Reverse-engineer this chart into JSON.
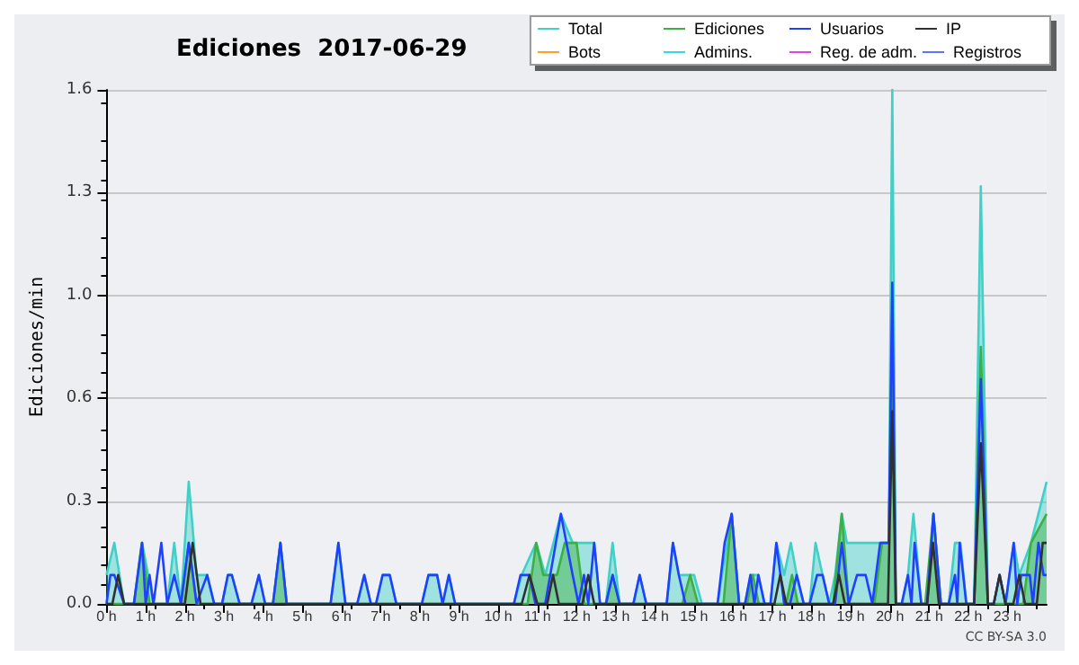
{
  "chart_data": {
    "type": "line",
    "title": "Ediciones  2017-06-29",
    "ylabel": "Ediciones/min",
    "xlim": [
      0,
      24
    ],
    "ylim": [
      0,
      1.6
    ],
    "xticks": [
      {
        "value": 0,
        "label": "0 h"
      },
      {
        "value": 1,
        "label": "1 h"
      },
      {
        "value": 2,
        "label": "2 h"
      },
      {
        "value": 3,
        "label": "3 h"
      },
      {
        "value": 4,
        "label": "4 h"
      },
      {
        "value": 5,
        "label": "5 h"
      },
      {
        "value": 6,
        "label": "6 h"
      },
      {
        "value": 7,
        "label": "7 h"
      },
      {
        "value": 8,
        "label": "8 h"
      },
      {
        "value": 9,
        "label": "9 h"
      },
      {
        "value": 10,
        "label": "10 h"
      },
      {
        "value": 11,
        "label": "11 h"
      },
      {
        "value": 12,
        "label": "12 h"
      },
      {
        "value": 13,
        "label": "13 h"
      },
      {
        "value": 14,
        "label": "14 h"
      },
      {
        "value": 15,
        "label": "15 h"
      },
      {
        "value": 16,
        "label": "16 h"
      },
      {
        "value": 17,
        "label": "17 h"
      },
      {
        "value": 18,
        "label": "18 h"
      },
      {
        "value": 19,
        "label": "19 h"
      },
      {
        "value": 20,
        "label": "20 h"
      },
      {
        "value": 21,
        "label": "21 h"
      },
      {
        "value": 22,
        "label": "22 h"
      },
      {
        "value": 23,
        "label": "23 h"
      }
    ],
    "yticks": [
      {
        "value": 0,
        "label": "0.0"
      },
      {
        "value": 0.32,
        "label": "0.3"
      },
      {
        "value": 0.64,
        "label": "0.6"
      },
      {
        "value": 0.96,
        "label": "1.0"
      },
      {
        "value": 1.28,
        "label": "1.3"
      },
      1.6
    ],
    "grid": "y",
    "legend": "top right",
    "marker": "none",
    "line_style": "solid",
    "annotations": [
      "CC BY-SA 3.0"
    ],
    "series": [
      {
        "name": "Total",
        "type": "area",
        "color": "#40d0c8",
        "x": [
          0,
          0.2,
          0.45,
          0.7,
          0.91,
          1.2,
          1.55,
          1.73,
          1.9,
          2.1,
          2.3,
          2.57,
          2.75,
          2.95,
          3.1,
          3.2,
          3.4,
          3.7,
          3.89,
          4.05,
          4.25,
          4.44,
          4.6,
          5.72,
          5.92,
          6.1,
          6.4,
          6.58,
          6.75,
          6.88,
          7.05,
          7.23,
          7.4,
          8.05,
          8.22,
          8.44,
          8.58,
          8.74,
          8.9,
          10.4,
          10.6,
          10.97,
          11.2,
          11.6,
          11.9,
          12.2,
          12.45,
          12.6,
          12.75,
          12.92,
          13.1,
          13.45,
          13.61,
          13.78,
          14.3,
          14.46,
          14.61,
          14.78,
          15,
          15.2,
          15.6,
          15.96,
          16.15,
          16.3,
          16.44,
          16.64,
          16.8,
          16.95,
          17.1,
          17.3,
          17.47,
          17.62,
          17.8,
          17.95,
          18.1,
          18.28,
          18.45,
          18.6,
          18.77,
          18.9,
          19.6,
          19.75,
          19.97,
          20.06,
          20.15,
          20.3,
          20.46,
          20.6,
          20.8,
          20.95,
          21.11,
          21.3,
          21.5,
          21.66,
          21.8,
          21.95,
          22.15,
          22.32,
          22.5,
          22.65,
          22.8,
          22.95,
          23.16,
          23.3,
          23.6,
          24
        ],
        "values": [
          0.09,
          0.19,
          0,
          0,
          0.19,
          0,
          0,
          0.19,
          0,
          0.38,
          0.09,
          0.09,
          0,
          0,
          0.09,
          0.09,
          0,
          0,
          0.09,
          0,
          0,
          0.19,
          0,
          0,
          0.19,
          0,
          0,
          0.09,
          0,
          0,
          0.09,
          0.09,
          0,
          0,
          0.09,
          0.09,
          0,
          0.09,
          0,
          0,
          0.09,
          0.19,
          0.09,
          0.28,
          0.19,
          0.19,
          0.19,
          0,
          0,
          0.19,
          0,
          0,
          0.09,
          0,
          0,
          0.19,
          0.09,
          0.09,
          0.09,
          0,
          0,
          0.28,
          0,
          0,
          0.09,
          0.09,
          0,
          0,
          0.19,
          0.09,
          0.19,
          0.09,
          0,
          0,
          0.19,
          0.09,
          0,
          0.09,
          0.28,
          0.19,
          0.19,
          0.19,
          0.19,
          1.6,
          0,
          0,
          0.09,
          0.28,
          0,
          0,
          0.28,
          0,
          0,
          0.19,
          0.19,
          0,
          0,
          1.3,
          0,
          0,
          0.09,
          0,
          0.19,
          0.09,
          0.19,
          0.38
        ]
      },
      {
        "name": "Ediciones",
        "type": "area",
        "color": "#3cb043",
        "x": [
          0,
          0.7,
          0.9,
          1.1,
          1.9,
          2.1,
          2.3,
          4.25,
          4.44,
          4.6,
          10.75,
          10.97,
          11.15,
          11.3,
          11.5,
          11.7,
          12.0,
          12.2,
          12.75,
          12.92,
          13.1,
          14.7,
          14.9,
          15.1,
          15.75,
          15.96,
          16.15,
          16.35,
          16.5,
          16.65,
          17.35,
          17.5,
          17.65,
          18.55,
          18.77,
          18.95,
          19.6,
          19.8,
          19.97,
          20.06,
          20.15,
          20.9,
          21.11,
          21.3,
          22.15,
          22.32,
          22.5,
          23.4,
          23.6,
          24
        ],
        "values": [
          0,
          0,
          0.19,
          0,
          0,
          0.19,
          0,
          0,
          0.19,
          0,
          0,
          0.19,
          0.09,
          0.09,
          0.09,
          0.19,
          0.19,
          0,
          0,
          0.09,
          0,
          0,
          0.09,
          0,
          0,
          0.28,
          0,
          0,
          0.09,
          0,
          0,
          0.09,
          0,
          0,
          0.28,
          0,
          0,
          0.19,
          0.19,
          0.85,
          0,
          0,
          0.28,
          0,
          0,
          0.8,
          0,
          0,
          0.19,
          0.28
        ]
      },
      {
        "name": "Usuarios",
        "color": "#2040ff",
        "x": [
          0,
          0.1,
          0.2,
          0.45,
          0.7,
          0.91,
          1.0,
          1.1,
          1.2,
          1.4,
          1.55,
          1.73,
          1.9,
          2.1,
          2.3,
          2.57,
          2.75,
          2.95,
          3.1,
          3.2,
          3.4,
          3.7,
          3.89,
          4.05,
          4.25,
          4.44,
          4.6,
          5.72,
          5.92,
          6.1,
          6.4,
          6.58,
          6.75,
          6.88,
          7.05,
          7.23,
          7.4,
          8.05,
          8.22,
          8.44,
          8.58,
          8.74,
          8.9,
          10.4,
          10.57,
          10.79,
          10.95,
          11.2,
          11.6,
          11.9,
          12.05,
          12.19,
          12.3,
          12.45,
          12.6,
          12.75,
          12.92,
          13.1,
          13.45,
          13.61,
          13.78,
          14.3,
          14.46,
          14.61,
          14.78,
          15.6,
          15.78,
          15.96,
          16.15,
          16.3,
          16.44,
          16.54,
          16.64,
          16.8,
          16.95,
          17.1,
          17.3,
          17.45,
          17.62,
          17.8,
          17.95,
          18.14,
          18.28,
          18.45,
          18.6,
          18.77,
          18.95,
          19.16,
          19.38,
          19.55,
          19.75,
          19.97,
          20.06,
          20.15,
          20.3,
          20.46,
          20.55,
          20.63,
          20.8,
          20.95,
          21.11,
          21.3,
          21.5,
          21.66,
          21.72,
          21.78,
          21.95,
          22.15,
          22.32,
          22.5,
          22.65,
          22.8,
          22.95,
          23.16,
          23.25,
          23.35,
          23.57,
          23.65,
          23.79,
          23.92,
          24
        ],
        "values": [
          0,
          0.09,
          0.09,
          0,
          0,
          0.19,
          0,
          0.09,
          0,
          0.19,
          0,
          0.09,
          0,
          0.19,
          0,
          0.09,
          0,
          0,
          0.09,
          0.09,
          0,
          0,
          0.09,
          0,
          0,
          0.19,
          0,
          0,
          0.19,
          0,
          0,
          0.09,
          0,
          0,
          0.09,
          0.09,
          0,
          0,
          0.09,
          0.09,
          0,
          0.09,
          0,
          0,
          0.09,
          0.09,
          0,
          0,
          0.28,
          0.09,
          0,
          0.09,
          0,
          0.19,
          0,
          0,
          0.09,
          0,
          0,
          0.09,
          0,
          0,
          0.19,
          0.09,
          0,
          0,
          0.19,
          0.28,
          0,
          0,
          0.09,
          0,
          0.09,
          0,
          0,
          0.19,
          0,
          0,
          0.09,
          0,
          0,
          0.09,
          0.09,
          0,
          0,
          0.19,
          0,
          0.09,
          0.09,
          0,
          0.19,
          0.19,
          1.0,
          0,
          0,
          0.09,
          0,
          0.19,
          0,
          0,
          0.28,
          0,
          0,
          0.09,
          0,
          0.19,
          0,
          0,
          0.7,
          0,
          0,
          0.09,
          0,
          0.19,
          0,
          0.09,
          0.09,
          0,
          0.19,
          0.09,
          0.09
        ]
      },
      {
        "name": "IP",
        "color": "#303030",
        "x": [
          0,
          0.15,
          0.3,
          0.45,
          2.0,
          2.2,
          2.4,
          10.6,
          10.8,
          11.0,
          11.25,
          11.4,
          11.55,
          12.15,
          12.3,
          12.45,
          17.05,
          17.2,
          17.35,
          18.55,
          18.7,
          18.85,
          19.95,
          20.06,
          20.15,
          20.95,
          21.1,
          21.25,
          22.15,
          22.32,
          22.5,
          22.65,
          22.8,
          22.95,
          23.15,
          23.3,
          23.45,
          23.75,
          23.9,
          24
        ],
        "values": [
          0,
          0,
          0.09,
          0,
          0,
          0.19,
          0,
          0,
          0.09,
          0,
          0,
          0.09,
          0,
          0,
          0.09,
          0,
          0,
          0.09,
          0,
          0,
          0.09,
          0,
          0,
          0.6,
          0,
          0,
          0.19,
          0,
          0,
          0.5,
          0,
          0,
          0.09,
          0,
          0,
          0.09,
          0,
          0,
          0.19,
          0.19
        ]
      },
      {
        "name": "Bots",
        "type": "line",
        "color": "#ffa020"
      },
      {
        "name": "Admins.",
        "type": "line",
        "color": "#30d8e8"
      },
      {
        "name": "Reg. de adm.",
        "type": "line",
        "color": "#e040f0"
      },
      {
        "name": "Registros",
        "color": "#6070ff"
      }
    ]
  }
}
